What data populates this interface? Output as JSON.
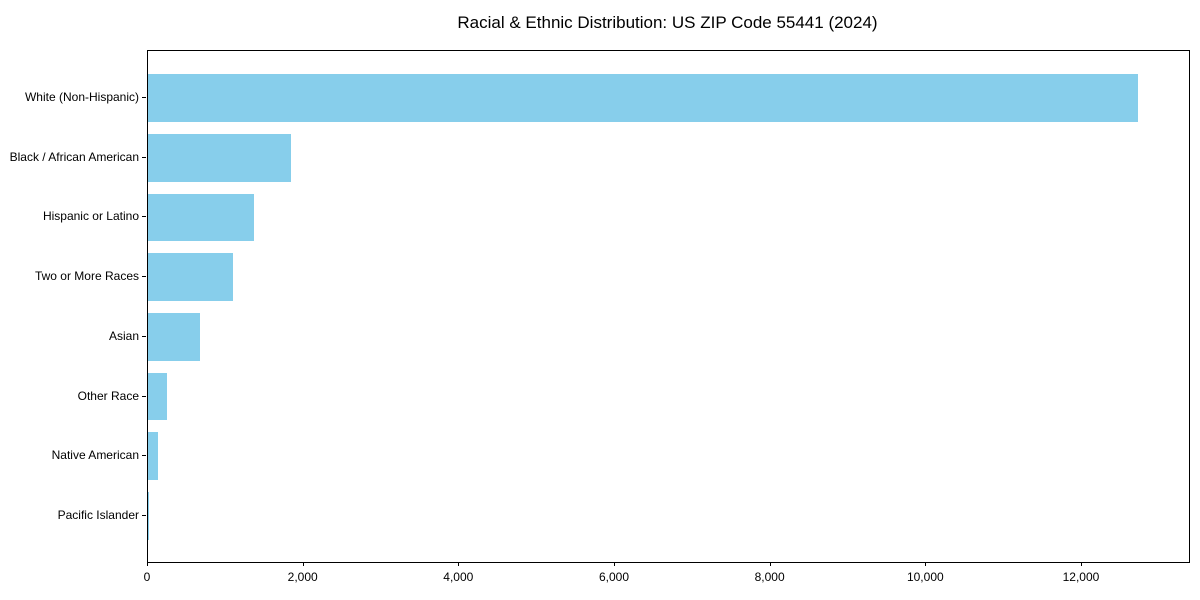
{
  "chart_data": {
    "type": "bar",
    "orientation": "horizontal",
    "title": "Racial & Ethnic Distribution: US ZIP Code 55441 (2024)",
    "categories": [
      "White (Non-Hispanic)",
      "Black / African American",
      "Hispanic or Latino",
      "Two or More Races",
      "Asian",
      "Other Race",
      "Native American",
      "Pacific Islander"
    ],
    "values": [
      12715,
      1840,
      1365,
      1095,
      665,
      240,
      125,
      10
    ],
    "xlabel": "",
    "ylabel": "",
    "xlim": [
      0,
      13375
    ],
    "xticks": [
      0,
      2000,
      4000,
      6000,
      8000,
      10000,
      12000
    ],
    "xtick_labels": [
      "0",
      "2,000",
      "4,000",
      "6,000",
      "8,000",
      "10,000",
      "12,000"
    ],
    "bar_color": "#87CEEB",
    "axis_color": "#000000",
    "background_color": "#ffffff",
    "grid": false,
    "legend": null
  }
}
